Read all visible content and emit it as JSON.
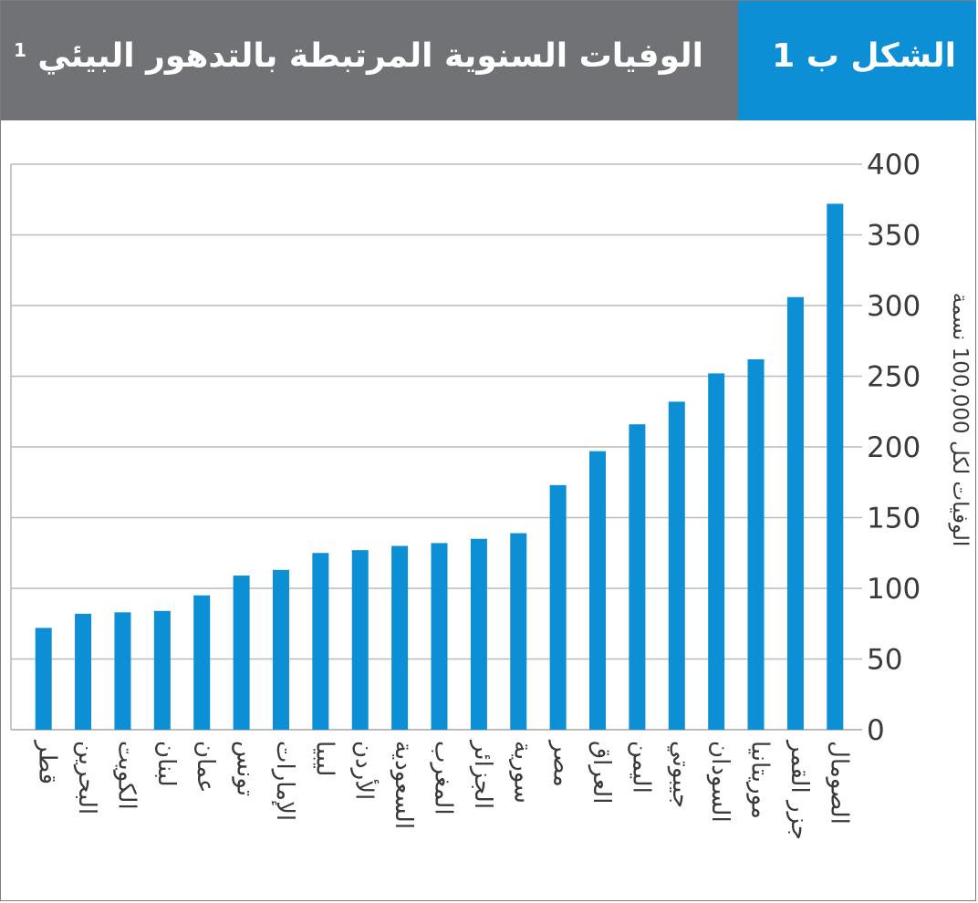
{
  "header": {
    "figure_label": "الشكل ب 1",
    "title": "الوفيات السنوية المرتبطة بالتدهور البيئي",
    "footnote_mark": "1"
  },
  "colors": {
    "header_gray": "#707275",
    "header_blue": "#0c8fd4",
    "bar": "#0c8fd4",
    "grid": "#b9bbbd"
  },
  "chart_data": {
    "type": "bar",
    "orientation": "vertical",
    "title": "الوفيات السنوية المرتبطة بالتدهور البيئي",
    "ylabel": "الوفيات لكل 100,000 نسمة",
    "xlabel": "",
    "ylim": [
      0,
      400
    ],
    "yticks": [
      0,
      50,
      100,
      150,
      200,
      250,
      300,
      350,
      400
    ],
    "y_axis_side": "right",
    "grid": true,
    "categories": [
      "قطر",
      "البحرين",
      "الكويت",
      "لبنان",
      "عمان",
      "تونس",
      "الإمارات",
      "ليبيا",
      "الأردن",
      "السعودية",
      "المغرب",
      "الجزائر",
      "سورية",
      "مصر",
      "العراق",
      "اليمن",
      "جيبوتي",
      "السودان",
      "موريتانيا",
      "جزر القمر",
      "الصومال"
    ],
    "values": [
      72,
      82,
      83,
      84,
      95,
      109,
      113,
      125,
      127,
      130,
      132,
      135,
      139,
      173,
      197,
      216,
      232,
      252,
      262,
      306,
      372
    ]
  }
}
